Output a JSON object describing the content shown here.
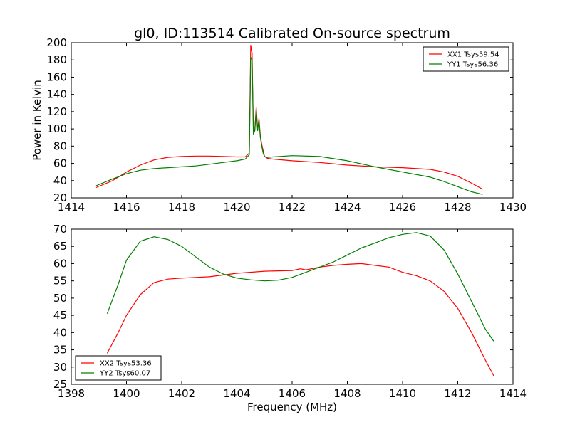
{
  "chart_data": [
    {
      "type": "line",
      "title": "gl0, ID:113514 Calibrated On-source spectrum",
      "xlabel": "",
      "ylabel": "Power in Kelvin",
      "xlim": [
        1414,
        1430
      ],
      "ylim": [
        20,
        200
      ],
      "xticks": [
        1414,
        1416,
        1418,
        1420,
        1422,
        1424,
        1426,
        1428,
        1430
      ],
      "yticks": [
        20,
        40,
        60,
        80,
        100,
        120,
        140,
        160,
        180,
        200
      ],
      "legend_position": "top-right",
      "series": [
        {
          "name": "XX1 Tsys59.54",
          "color": "#ff0000",
          "x": [
            1414.9,
            1415.5,
            1416.0,
            1416.5,
            1417.0,
            1417.5,
            1418.0,
            1418.5,
            1419.0,
            1419.5,
            1420.0,
            1420.3,
            1420.45,
            1420.5,
            1420.55,
            1420.6,
            1420.65,
            1420.7,
            1420.75,
            1420.8,
            1420.85,
            1420.9,
            1420.95,
            1421.0,
            1421.1,
            1421.3,
            1422.0,
            1423.0,
            1424.0,
            1425.0,
            1426.0,
            1427.0,
            1427.5,
            1428.0,
            1428.5,
            1428.9
          ],
          "y": [
            32,
            40,
            50,
            58,
            64,
            67,
            68,
            68.5,
            68.5,
            68,
            67.5,
            67.5,
            72,
            197,
            188,
            95,
            100,
            125,
            100,
            112,
            92,
            82,
            75,
            68,
            66,
            65,
            63,
            61,
            58,
            56,
            55,
            53,
            50,
            45,
            37,
            30
          ]
        },
        {
          "name": "YY1 Tsys56.36",
          "color": "#008000",
          "x": [
            1414.9,
            1415.5,
            1416.0,
            1416.5,
            1417.0,
            1417.5,
            1418.0,
            1418.5,
            1419.0,
            1419.5,
            1420.0,
            1420.3,
            1420.45,
            1420.5,
            1420.55,
            1420.6,
            1420.65,
            1420.7,
            1420.75,
            1420.8,
            1420.85,
            1420.9,
            1420.95,
            1421.0,
            1421.1,
            1421.3,
            1422.0,
            1423.0,
            1424.0,
            1425.0,
            1426.0,
            1427.0,
            1427.5,
            1428.0,
            1428.5,
            1428.9
          ],
          "y": [
            34,
            42,
            48,
            52,
            54,
            55,
            56,
            57,
            59,
            61,
            63,
            65,
            70,
            183,
            180,
            94,
            98,
            122,
            98,
            110,
            90,
            80,
            72,
            68,
            67,
            67.5,
            69,
            68,
            63,
            56,
            50,
            44,
            39,
            33,
            27,
            24
          ]
        }
      ]
    },
    {
      "type": "line",
      "title": "",
      "xlabel": "Frequency (MHz)",
      "ylabel": "",
      "xlim": [
        1398,
        1414
      ],
      "ylim": [
        25,
        70
      ],
      "xticks": [
        1398,
        1400,
        1402,
        1404,
        1406,
        1408,
        1410,
        1412,
        1414
      ],
      "yticks": [
        25,
        30,
        35,
        40,
        45,
        50,
        55,
        60,
        65,
        70
      ],
      "legend_position": "bottom-left",
      "series": [
        {
          "name": "XX2 Tsys53.36",
          "color": "#ff0000",
          "x": [
            1399.3,
            1399.7,
            1400.0,
            1400.5,
            1401.0,
            1401.5,
            1402.0,
            1403.0,
            1404.0,
            1405.0,
            1406.0,
            1406.3,
            1406.5,
            1407.0,
            1407.5,
            1408.0,
            1408.5,
            1409.0,
            1409.5,
            1410.0,
            1410.5,
            1411.0,
            1411.5,
            1412.0,
            1412.5,
            1413.0,
            1413.3
          ],
          "y": [
            34,
            40,
            45,
            51,
            54.5,
            55.5,
            55.8,
            56.2,
            57.2,
            57.8,
            58,
            58.5,
            58.2,
            59,
            59.5,
            59.8,
            60,
            59.5,
            59,
            57.5,
            56.5,
            55,
            52,
            47,
            40,
            32,
            27.5
          ]
        },
        {
          "name": "YY2 Tsys60.07",
          "color": "#008000",
          "x": [
            1399.3,
            1399.7,
            1400.0,
            1400.5,
            1401.0,
            1401.5,
            1402.0,
            1402.5,
            1403.0,
            1403.5,
            1404.0,
            1404.5,
            1405.0,
            1405.5,
            1406.0,
            1406.5,
            1407.0,
            1407.5,
            1408.0,
            1408.5,
            1409.0,
            1409.5,
            1410.0,
            1410.5,
            1411.0,
            1411.5,
            1412.0,
            1412.5,
            1413.0,
            1413.3
          ],
          "y": [
            45.5,
            54,
            61,
            66.5,
            67.8,
            67,
            65,
            62,
            59,
            57,
            55.8,
            55.3,
            55,
            55.2,
            56,
            57.5,
            59,
            60.5,
            62.5,
            64.5,
            66,
            67.5,
            68.5,
            69,
            68,
            64,
            57,
            49,
            41,
            37.5
          ]
        }
      ]
    }
  ]
}
